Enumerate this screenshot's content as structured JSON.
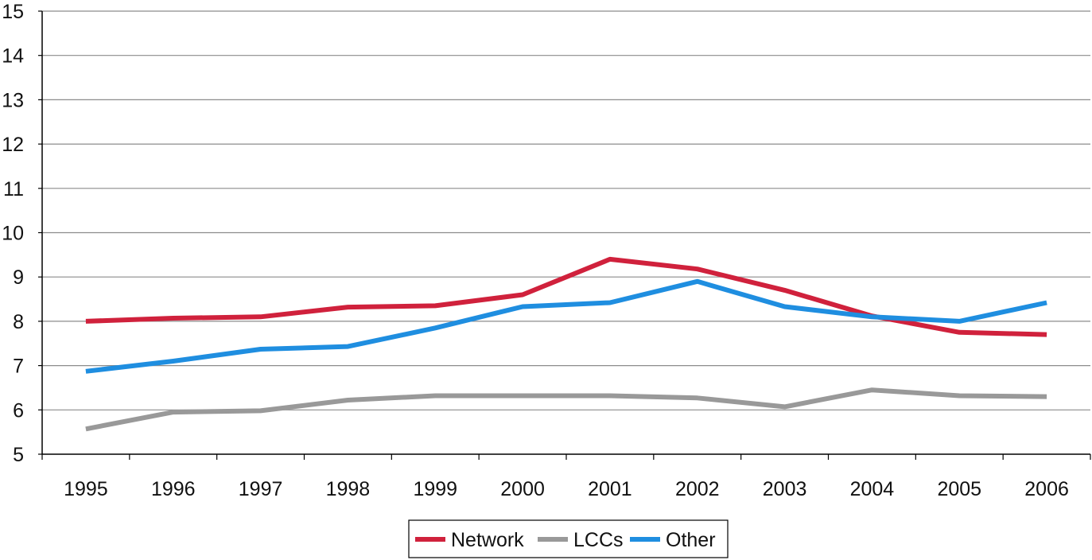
{
  "chart_data": {
    "type": "line",
    "title": "",
    "xlabel": "",
    "ylabel": "",
    "categories": [
      "1995",
      "1996",
      "1997",
      "1998",
      "1999",
      "2000",
      "2001",
      "2002",
      "2003",
      "2004",
      "2005",
      "2006"
    ],
    "ylim": [
      5,
      15
    ],
    "yticks": [
      5,
      6,
      7,
      8,
      9,
      10,
      11,
      12,
      13,
      14,
      15
    ],
    "grid": true,
    "legend_position": "bottom-center",
    "series": [
      {
        "name": "Network",
        "color": "#d0213c",
        "values": [
          8.0,
          8.07,
          8.1,
          8.32,
          8.35,
          8.6,
          9.4,
          9.18,
          8.7,
          8.12,
          7.75,
          7.7
        ]
      },
      {
        "name": "LCCs",
        "color": "#999999",
        "values": [
          5.57,
          5.95,
          5.98,
          6.22,
          6.32,
          6.32,
          6.32,
          6.27,
          6.07,
          6.45,
          6.32,
          6.3
        ]
      },
      {
        "name": "Other",
        "color": "#1f8ee0",
        "values": [
          6.87,
          7.1,
          7.37,
          7.43,
          7.85,
          8.33,
          8.42,
          8.9,
          8.33,
          8.1,
          8.0,
          8.42
        ]
      }
    ]
  }
}
